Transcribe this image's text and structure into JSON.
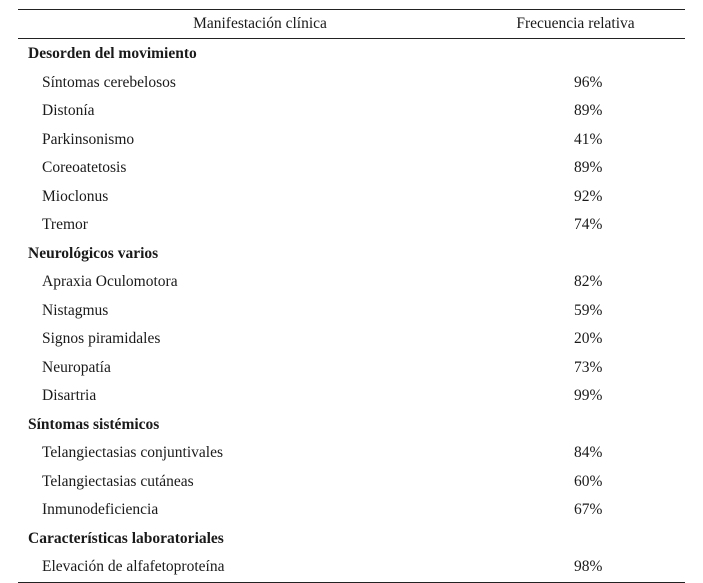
{
  "table": {
    "headers": {
      "manifestation": "Manifestación clínica",
      "frequency": "Frecuencia relativa"
    },
    "groups": [
      {
        "title": "Desorden del movimiento",
        "rows": [
          {
            "name": "Síntomas cerebelosos",
            "value": "96%"
          },
          {
            "name": "Distonía",
            "value": "89%"
          },
          {
            "name": "Parkinsonismo",
            "value": "41%"
          },
          {
            "name": "Coreoatetosis",
            "value": "89%"
          },
          {
            "name": "Mioclonus",
            "value": "92%"
          },
          {
            "name": "Tremor",
            "value": "74%"
          }
        ]
      },
      {
        "title": "Neurológicos varios",
        "rows": [
          {
            "name": "Apraxia Oculomotora",
            "value": "82%"
          },
          {
            "name": "Nistagmus",
            "value": "59%"
          },
          {
            "name": "Signos piramidales",
            "value": "20%"
          },
          {
            "name": "Neuropatía",
            "value": "73%"
          },
          {
            "name": "Disartria",
            "value": "99%"
          }
        ]
      },
      {
        "title": "Síntomas sistémicos",
        "rows": [
          {
            "name": "Telangiectasias conjuntivales",
            "value": "84%"
          },
          {
            "name": "Telangiectasias cutáneas",
            "value": "60%"
          },
          {
            "name": "Inmunodeficiencia",
            "value": "67%"
          }
        ]
      },
      {
        "title": "Características laboratoriales",
        "rows": [
          {
            "name": "Elevación de alfafetoproteína",
            "value": "98%"
          }
        ]
      }
    ]
  }
}
